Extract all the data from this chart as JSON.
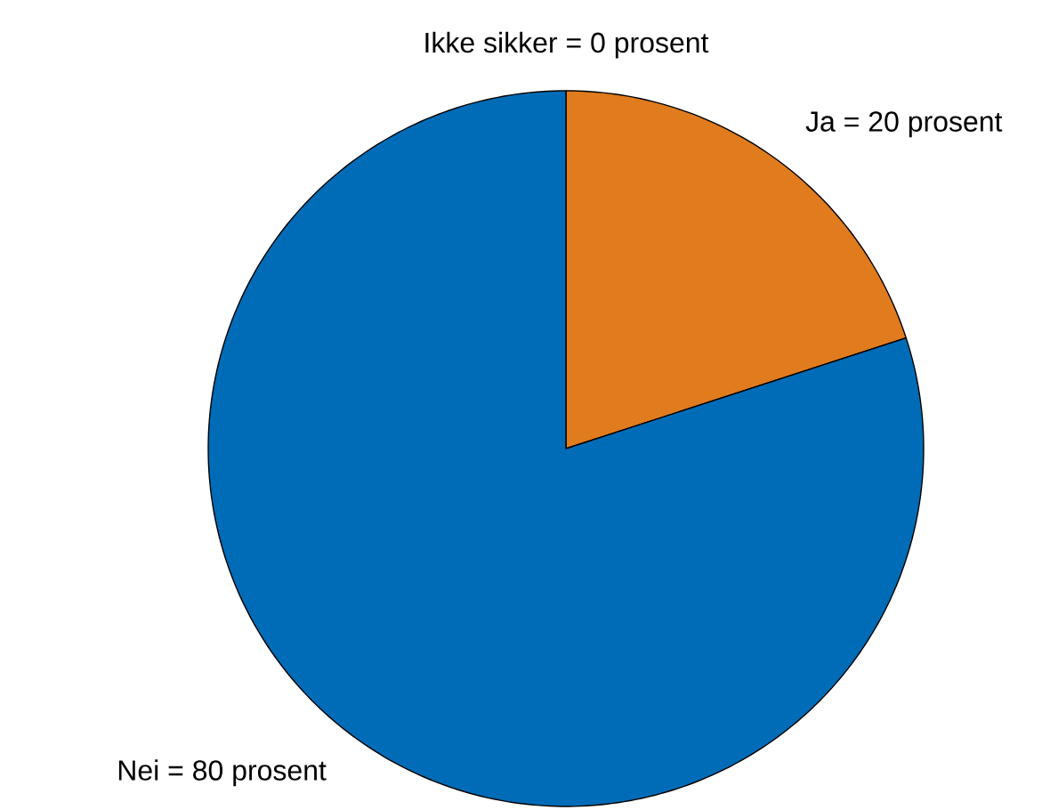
{
  "chart_data": {
    "type": "pie",
    "categories": [
      "Ikke sikker = 0 prosent",
      "Ja = 20 prosent",
      "Nei = 80 prosent"
    ],
    "values": [
      0,
      20,
      80
    ],
    "colors": [
      null,
      "#e07b1e",
      "#006cb7"
    ]
  }
}
